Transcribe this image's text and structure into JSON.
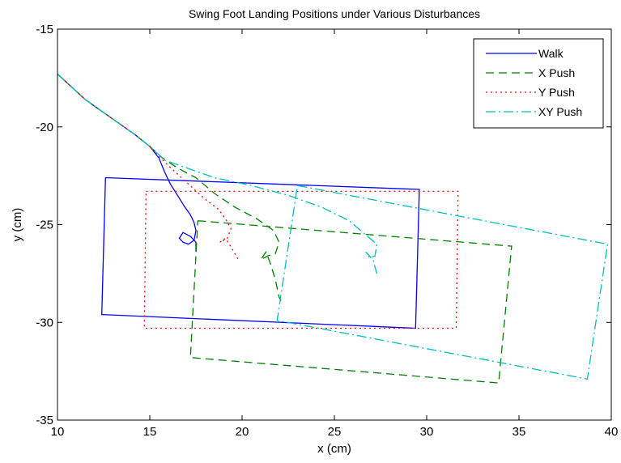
{
  "chart_data": {
    "type": "line",
    "title": "Swing Foot Landing Positions under Various Disturbances",
    "xlabel": "x (cm)",
    "ylabel": "y (cm)",
    "xlim": [
      10,
      40
    ],
    "ylim": [
      -35,
      -15
    ],
    "xticks": [
      "10",
      "15",
      "20",
      "25",
      "30",
      "35",
      "40"
    ],
    "yticks": [
      "-15",
      "-20",
      "-25",
      "-30",
      "-35"
    ],
    "grid": false,
    "legend_position": "top-right",
    "series": [
      {
        "name": "Walk",
        "color": "#0000ff",
        "dash": "solid",
        "segments": [
          [
            [
              10.0,
              -17.3
            ],
            [
              11.5,
              -18.6
            ],
            [
              13.0,
              -19.6
            ],
            [
              14.2,
              -20.4
            ],
            [
              15.0,
              -21.0
            ],
            [
              15.5,
              -21.6
            ],
            [
              15.8,
              -22.3
            ],
            [
              16.1,
              -22.9
            ],
            [
              16.5,
              -23.5
            ],
            [
              16.9,
              -24.1
            ],
            [
              17.2,
              -24.5
            ],
            [
              17.4,
              -24.9
            ],
            [
              17.5,
              -25.3
            ],
            [
              17.4,
              -25.8
            ],
            [
              17.1,
              -26.0
            ],
            [
              16.8,
              -25.9
            ],
            [
              16.6,
              -25.7
            ],
            [
              16.8,
              -25.4
            ],
            [
              17.2,
              -25.6
            ],
            [
              17.5,
              -25.9
            ],
            [
              17.5,
              -26.4
            ]
          ],
          [
            [
              12.6,
              -22.6
            ],
            [
              29.6,
              -23.2
            ],
            [
              29.4,
              -30.3
            ],
            [
              12.4,
              -29.6
            ],
            [
              12.6,
              -22.6
            ]
          ]
        ]
      },
      {
        "name": "X Push",
        "color": "#008000",
        "dash": "10,6",
        "segments": [
          [
            [
              10.0,
              -17.3
            ],
            [
              11.5,
              -18.6
            ],
            [
              13.0,
              -19.6
            ],
            [
              14.2,
              -20.4
            ],
            [
              15.0,
              -21.0
            ],
            [
              15.7,
              -21.6
            ],
            [
              16.5,
              -22.1
            ],
            [
              17.5,
              -22.6
            ],
            [
              18.5,
              -23.4
            ],
            [
              19.6,
              -24.1
            ],
            [
              20.8,
              -24.7
            ],
            [
              21.7,
              -25.3
            ],
            [
              22.0,
              -25.9
            ],
            [
              21.8,
              -26.5
            ],
            [
              21.4,
              -26.6
            ],
            [
              21.0,
              -26.8
            ],
            [
              21.3,
              -26.4
            ],
            [
              21.5,
              -26.9
            ],
            [
              21.8,
              -27.8
            ],
            [
              22.0,
              -28.7
            ],
            [
              22.1,
              -28.9
            ]
          ],
          [
            [
              17.6,
              -24.8
            ],
            [
              34.6,
              -26.1
            ],
            [
              33.9,
              -33.1
            ],
            [
              17.2,
              -31.8
            ],
            [
              17.6,
              -24.8
            ]
          ]
        ]
      },
      {
        "name": "Y Push",
        "color": "#ff0000",
        "dash": "2,4",
        "segments": [
          [
            [
              10.0,
              -17.3
            ],
            [
              11.5,
              -18.6
            ],
            [
              13.0,
              -19.6
            ],
            [
              14.2,
              -20.4
            ],
            [
              15.0,
              -21.0
            ],
            [
              15.8,
              -21.8
            ],
            [
              16.6,
              -22.5
            ],
            [
              17.3,
              -23.1
            ],
            [
              18.0,
              -23.7
            ],
            [
              18.7,
              -24.2
            ],
            [
              19.1,
              -24.7
            ],
            [
              19.4,
              -25.2
            ],
            [
              19.2,
              -25.7
            ],
            [
              18.8,
              -25.9
            ],
            [
              19.1,
              -25.7
            ],
            [
              19.5,
              -26.3
            ],
            [
              19.8,
              -26.8
            ]
          ],
          [
            [
              14.8,
              -23.3
            ],
            [
              31.7,
              -23.3
            ],
            [
              31.6,
              -30.3
            ],
            [
              14.7,
              -30.3
            ],
            [
              14.8,
              -23.3
            ]
          ]
        ]
      },
      {
        "name": "XY Push",
        "color": "#00bfbf",
        "dash": "12,4,2,4",
        "segments": [
          [
            [
              10.0,
              -17.3
            ],
            [
              11.5,
              -18.6
            ],
            [
              13.0,
              -19.6
            ],
            [
              14.2,
              -20.4
            ],
            [
              15.0,
              -21.0
            ],
            [
              15.8,
              -21.7
            ],
            [
              16.7,
              -22.0
            ],
            [
              18.5,
              -22.6
            ],
            [
              20.5,
              -23.0
            ],
            [
              22.5,
              -23.5
            ],
            [
              24.3,
              -24.1
            ],
            [
              25.8,
              -24.8
            ],
            [
              26.8,
              -25.6
            ],
            [
              27.3,
              -26.0
            ],
            [
              27.2,
              -26.6
            ],
            [
              26.9,
              -26.7
            ],
            [
              26.7,
              -26.4
            ],
            [
              27.1,
              -26.8
            ],
            [
              27.3,
              -27.5
            ]
          ],
          [
            [
              23.0,
              -23.0
            ],
            [
              39.8,
              -26.0
            ],
            [
              38.7,
              -32.9
            ],
            [
              21.9,
              -29.9
            ],
            [
              23.0,
              -23.0
            ]
          ]
        ]
      }
    ]
  }
}
